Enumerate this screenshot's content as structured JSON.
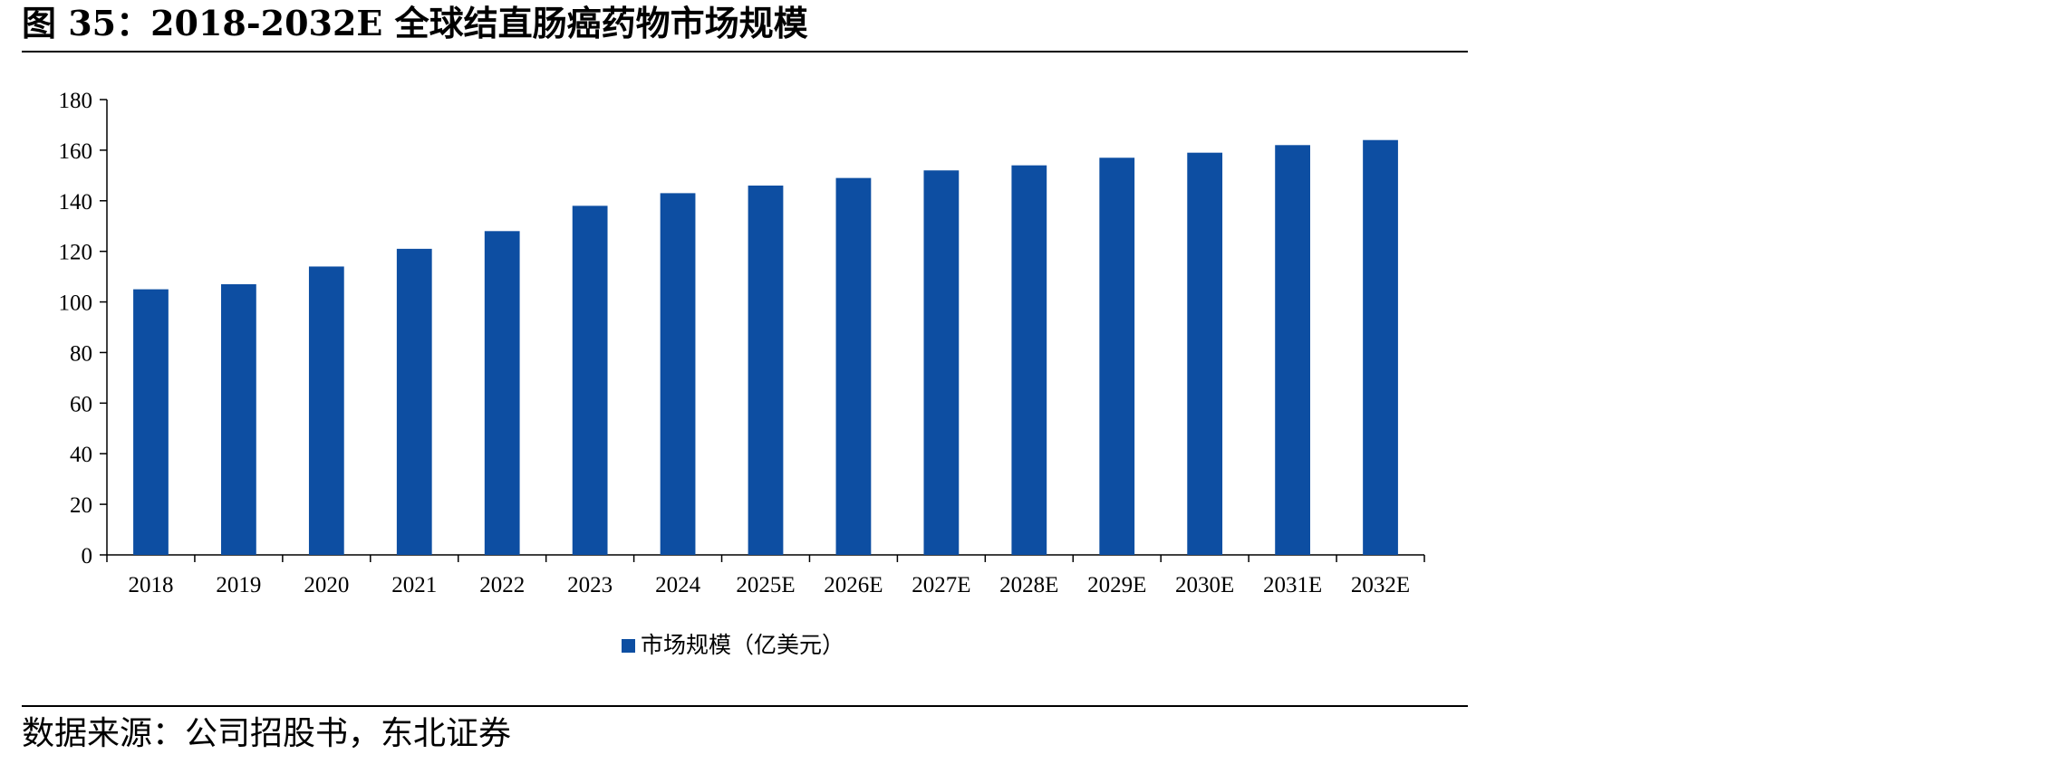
{
  "figure": {
    "title": "图 35：2018-2032E 全球结直肠癌药物市场规模",
    "source": "数据来源：公司招股书，东北证券"
  },
  "chart_data": {
    "type": "bar",
    "categories": [
      "2018",
      "2019",
      "2020",
      "2021",
      "2022",
      "2023",
      "2024",
      "2025E",
      "2026E",
      "2027E",
      "2028E",
      "2029E",
      "2030E",
      "2031E",
      "2032E"
    ],
    "series": [
      {
        "name": "市场规模（亿美元）",
        "values": [
          105,
          107,
          114,
          121,
          128,
          138,
          143,
          146,
          149,
          152,
          154,
          157,
          159,
          162,
          164
        ],
        "color": "#0d4ea2"
      }
    ],
    "title": "",
    "xlabel": "",
    "ylabel": "",
    "ylim": [
      0,
      180
    ],
    "yticks": [
      0,
      20,
      40,
      60,
      80,
      100,
      120,
      140,
      160,
      180
    ],
    "grid": false,
    "legend": "bottom-center"
  }
}
